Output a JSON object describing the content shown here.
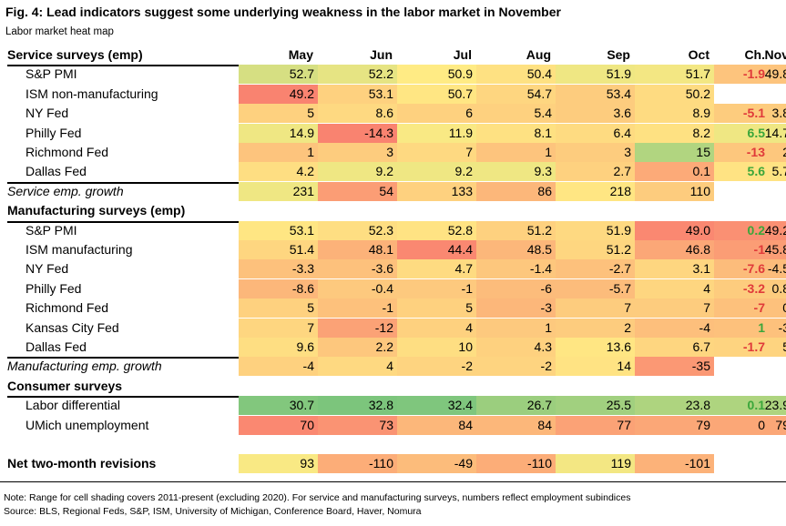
{
  "title": "Fig. 4: Lead indicators suggest some underlying weakness in the labor market in November",
  "subtitle": "Labor market heat map",
  "colors": {
    "ch_negative": "#e03a3a",
    "ch_positive": "#3aa63a",
    "ch_zero": "#000000",
    "scale_low": "#f8696b",
    "scale_mid": "#ffeb84",
    "scale_high": "#63be7b"
  },
  "chart_data": {
    "type": "heatmap",
    "columns": [
      "May",
      "Jun",
      "Jul",
      "Aug",
      "Sep",
      "Oct",
      "Nov"
    ],
    "change_header": "Ch.",
    "sections": [
      {
        "title": "Service surveys (emp)",
        "rows": [
          {
            "label": "S&P PMI",
            "values": [
              "52.7",
              "52.2",
              "50.9",
              "50.4",
              "51.9",
              "51.7",
              "49.8"
            ],
            "shade": [
              0.63,
              0.58,
              0.5,
              0.46,
              0.55,
              0.54,
              0.35
            ],
            "change": "-1.9"
          },
          {
            "label": "ISM non-manufacturing",
            "values": [
              "49.2",
              "53.1",
              "50.7",
              "54.7",
              "53.4",
              "50.2",
              ""
            ],
            "shade": [
              0.1,
              0.4,
              0.48,
              0.42,
              0.38,
              0.44,
              null
            ],
            "change": ""
          },
          {
            "label": "NY Fed",
            "values": [
              "5",
              "8.6",
              "6",
              "5.4",
              "3.6",
              "8.9",
              "3.8"
            ],
            "shade": [
              0.4,
              0.43,
              0.4,
              0.4,
              0.38,
              0.44,
              0.38
            ],
            "change": "-5.1"
          },
          {
            "label": "Philly Fed",
            "values": [
              "14.9",
              "-14.3",
              "11.9",
              "8.1",
              "6.4",
              "8.2",
              "14.7"
            ],
            "shade": [
              0.55,
              0.1,
              0.52,
              0.46,
              0.44,
              0.46,
              0.55
            ],
            "change": "6.5"
          },
          {
            "label": "Richmond Fed",
            "values": [
              "1",
              "3",
              "7",
              "1",
              "3",
              "15",
              "2"
            ],
            "shade": [
              0.35,
              0.38,
              0.43,
              0.35,
              0.38,
              0.75,
              0.36
            ],
            "change": "-13"
          },
          {
            "label": "Dallas Fed",
            "values": [
              "4.2",
              "9.2",
              "9.2",
              "9.3",
              "2.7",
              "0.1",
              "5.7"
            ],
            "shade": [
              0.45,
              0.55,
              0.55,
              0.55,
              0.4,
              0.25,
              0.47
            ],
            "change": "5.6"
          }
        ],
        "growth": {
          "label": "Service emp. growth",
          "values": [
            "231",
            "54",
            "133",
            "86",
            "218",
            "110",
            ""
          ],
          "shade": [
            0.55,
            0.2,
            0.4,
            0.3,
            0.48,
            0.38,
            null
          ]
        }
      },
      {
        "title": "Manufacturing surveys (emp)",
        "rows": [
          {
            "label": "S&P PMI",
            "values": [
              "53.1",
              "52.3",
              "52.8",
              "51.2",
              "51.9",
              "49.0",
              "49.2"
            ],
            "shade": [
              0.48,
              0.45,
              0.47,
              0.4,
              0.43,
              0.12,
              0.15
            ],
            "change": "0.2"
          },
          {
            "label": "ISM manufacturing",
            "values": [
              "51.4",
              "48.1",
              "44.4",
              "48.5",
              "51.2",
              "46.8",
              "45.8"
            ],
            "shade": [
              0.42,
              0.28,
              0.12,
              0.3,
              0.42,
              0.24,
              0.2
            ],
            "change": "-1"
          },
          {
            "label": "NY Fed",
            "values": [
              "-3.3",
              "-3.6",
              "4.7",
              "-1.4",
              "-2.7",
              "3.1",
              "-4.5"
            ],
            "shade": [
              0.34,
              0.34,
              0.44,
              0.36,
              0.34,
              0.42,
              0.32
            ],
            "change": "-7.6"
          },
          {
            "label": "Philly Fed",
            "values": [
              "-8.6",
              "-0.4",
              "-1",
              "-6",
              "-5.7",
              "4",
              "0.8"
            ],
            "shade": [
              0.3,
              0.37,
              0.37,
              0.32,
              0.32,
              0.42,
              0.38
            ],
            "change": "-3.2"
          },
          {
            "label": "Richmond Fed",
            "values": [
              "5",
              "-1",
              "5",
              "-3",
              "7",
              "7",
              "0"
            ],
            "shade": [
              0.4,
              0.34,
              0.4,
              0.3,
              0.38,
              0.38,
              0.34
            ],
            "change": "-7"
          },
          {
            "label": "Kansas City Fed",
            "values": [
              "7",
              "-12",
              "4",
              "1",
              "2",
              "-4",
              "-3"
            ],
            "shade": [
              0.42,
              0.22,
              0.4,
              0.37,
              0.38,
              0.33,
              0.34
            ],
            "change": "1"
          },
          {
            "label": "Dallas Fed",
            "values": [
              "9.6",
              "2.2",
              "10",
              "4.3",
              "13.6",
              "6.7",
              "5"
            ],
            "shade": [
              0.45,
              0.36,
              0.45,
              0.4,
              0.48,
              0.42,
              0.41
            ],
            "change": "-1.7"
          }
        ],
        "growth": {
          "label": "Manufacturing emp. growth",
          "values": [
            "-4",
            "4",
            "-2",
            "-2",
            "14",
            "-35",
            ""
          ],
          "shade": [
            0.4,
            0.43,
            0.41,
            0.41,
            0.47,
            0.18,
            null
          ]
        }
      },
      {
        "title": "Consumer surveys",
        "rows": [
          {
            "label": "Labor differential",
            "values": [
              "30.7",
              "32.8",
              "32.4",
              "26.7",
              "25.5",
              "23.8",
              "23.9"
            ],
            "shade": [
              0.9,
              0.92,
              0.91,
              0.82,
              0.8,
              0.76,
              0.76
            ],
            "change": "0.1"
          },
          {
            "label": "UMich unemployment",
            "values": [
              "70",
              "73",
              "84",
              "84",
              "77",
              "79",
              "79"
            ],
            "shade": [
              0.12,
              0.16,
              0.3,
              0.3,
              0.22,
              0.24,
              0.24
            ],
            "change": "0"
          }
        ]
      }
    ],
    "net_revisions": {
      "label": "Net two-month revisions",
      "values": [
        "93",
        "-110",
        "-49",
        "-110",
        "119",
        "-101",
        ""
      ],
      "shade": [
        0.52,
        0.26,
        0.32,
        0.26,
        0.54,
        0.28,
        null
      ]
    }
  },
  "footnotes": {
    "note": "Note: Range for cell shading covers 2011-present (excluding 2020). For service and manufacturing surveys, numbers reflect employment subindices",
    "source": "Source: BLS, Regional Feds, S&P, ISM, University of Michigan, Conference Board, Haver, Nomura"
  }
}
